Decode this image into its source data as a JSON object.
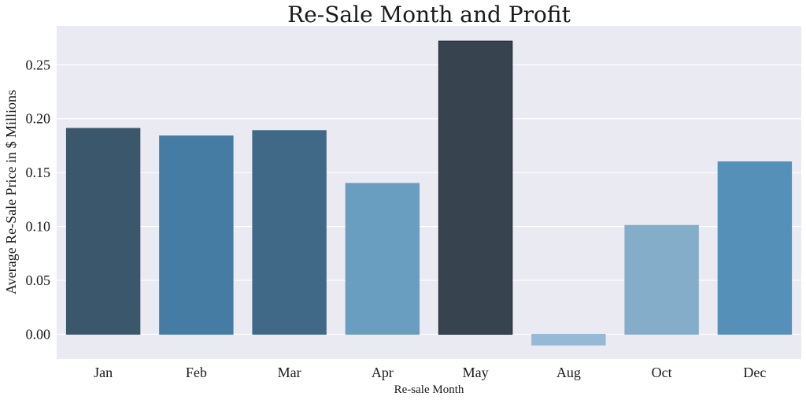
{
  "chart_data": {
    "type": "bar",
    "title": "Re-Sale Month and Profit",
    "xlabel": "Re-sale Month",
    "ylabel": "Average Re-Sale Price in $ Millions",
    "categories": [
      "Jan",
      "Feb",
      "Mar",
      "Apr",
      "May",
      "Aug",
      "Oct",
      "Dec"
    ],
    "values": [
      0.191,
      0.184,
      0.189,
      0.14,
      0.272,
      -0.01,
      0.101,
      0.16
    ],
    "colors": [
      "#3b576b",
      "#447ca3",
      "#3f6986",
      "#6a9ec0",
      "#37444f",
      "#96bad6",
      "#84adc9",
      "#5590b9"
    ],
    "ylim": [
      -0.023,
      0.286
    ],
    "yticks": [
      0.0,
      0.05,
      0.1,
      0.15,
      0.2,
      0.25
    ],
    "ytick_labels": [
      "0.00",
      "0.05",
      "0.10",
      "0.15",
      "0.20",
      "0.25"
    ],
    "grid": true,
    "background": "#eaeaf2"
  }
}
